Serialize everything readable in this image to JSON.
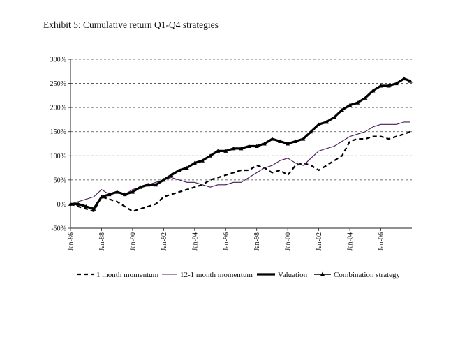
{
  "title": "Exhibit 5: Cumulative return Q1-Q4 strategies",
  "chart_data": {
    "type": "line",
    "title": "Exhibit 5: Cumulative return Q1-Q4 strategies",
    "xlabel": "",
    "ylabel": "",
    "ylim": [
      -50,
      300
    ],
    "xlim": [
      1986.0,
      2008.0
    ],
    "grid": "horizontal dashed",
    "legend_placement": "bottom",
    "y_ticks": [
      "-50%",
      "0%",
      "50%",
      "100%",
      "150%",
      "200%",
      "250%",
      "300%"
    ],
    "y_tick_values": [
      -50,
      0,
      50,
      100,
      150,
      200,
      250,
      300
    ],
    "x_ticks": [
      "Jan-86",
      "Jan-88",
      "Jan-90",
      "Jan-92",
      "Jan-94",
      "Jan-96",
      "Jan-98",
      "Jan-00",
      "Jan-02",
      "Jan-04",
      "Jan-06"
    ],
    "x_tick_values": [
      1986,
      1988,
      1990,
      1992,
      1994,
      1996,
      1998,
      2000,
      2002,
      2004,
      2006
    ],
    "series": [
      {
        "name": "1 month momentum",
        "style": "dashed",
        "color": "#000000",
        "x": [
          1986.0,
          1986.5,
          1987.0,
          1987.5,
          1988.0,
          1988.5,
          1989.0,
          1989.5,
          1990.0,
          1990.5,
          1991.0,
          1991.5,
          1992.0,
          1992.5,
          1993.0,
          1993.5,
          1994.0,
          1994.5,
          1995.0,
          1995.5,
          1996.0,
          1996.5,
          1997.0,
          1997.5,
          1998.0,
          1998.5,
          1999.0,
          1999.5,
          2000.0,
          2000.5,
          2001.0,
          2001.5,
          2002.0,
          2002.5,
          2003.0,
          2003.5,
          2004.0,
          2004.5,
          2005.0,
          2005.5,
          2006.0,
          2006.5,
          2007.0,
          2007.5,
          2007.9
        ],
        "y": [
          0,
          -5,
          -10,
          -15,
          15,
          10,
          5,
          -5,
          -15,
          -10,
          -5,
          0,
          15,
          20,
          25,
          30,
          35,
          40,
          50,
          55,
          60,
          65,
          70,
          70,
          80,
          75,
          65,
          70,
          60,
          80,
          85,
          80,
          70,
          80,
          90,
          100,
          130,
          135,
          135,
          140,
          140,
          135,
          140,
          145,
          150
        ]
      },
      {
        "name": "12-1 month momentum",
        "style": "thin",
        "color": "#4a1a5a",
        "x": [
          1986.0,
          1986.5,
          1987.0,
          1987.5,
          1988.0,
          1988.5,
          1989.0,
          1989.5,
          1990.0,
          1990.5,
          1991.0,
          1991.5,
          1992.0,
          1992.5,
          1993.0,
          1993.5,
          1994.0,
          1994.5,
          1995.0,
          1995.5,
          1996.0,
          1996.5,
          1997.0,
          1997.5,
          1998.0,
          1998.5,
          1999.0,
          1999.5,
          2000.0,
          2000.5,
          2001.0,
          2001.5,
          2002.0,
          2002.5,
          2003.0,
          2003.5,
          2004.0,
          2004.5,
          2005.0,
          2005.5,
          2006.0,
          2006.5,
          2007.0,
          2007.5,
          2007.9
        ],
        "y": [
          0,
          5,
          10,
          15,
          30,
          20,
          25,
          20,
          30,
          35,
          40,
          45,
          50,
          55,
          50,
          45,
          45,
          40,
          35,
          40,
          40,
          45,
          45,
          55,
          65,
          75,
          80,
          90,
          95,
          85,
          80,
          95,
          110,
          115,
          120,
          130,
          140,
          145,
          150,
          160,
          165,
          165,
          165,
          170,
          170
        ]
      },
      {
        "name": "Valuation",
        "style": "thick",
        "color": "#000000",
        "x": [
          1986.0,
          1986.5,
          1987.0,
          1987.5,
          1988.0,
          1988.5,
          1989.0,
          1989.5,
          1990.0,
          1990.5,
          1991.0,
          1991.5,
          1992.0,
          1992.5,
          1993.0,
          1993.5,
          1994.0,
          1994.5,
          1995.0,
          1995.5,
          1996.0,
          1996.5,
          1997.0,
          1997.5,
          1998.0,
          1998.5,
          1999.0,
          1999.5,
          2000.0,
          2000.5,
          2001.0,
          2001.5,
          2002.0,
          2002.5,
          2003.0,
          2003.5,
          2004.0,
          2004.5,
          2005.0,
          2005.5,
          2006.0,
          2006.5,
          2007.0,
          2007.5,
          2007.9
        ],
        "y": [
          0,
          0,
          -5,
          -10,
          15,
          20,
          25,
          20,
          25,
          35,
          40,
          40,
          50,
          60,
          70,
          75,
          85,
          90,
          100,
          110,
          110,
          115,
          115,
          120,
          120,
          125,
          135,
          130,
          125,
          130,
          135,
          150,
          165,
          170,
          180,
          195,
          205,
          210,
          220,
          235,
          245,
          245,
          250,
          260,
          255
        ]
      },
      {
        "name": "Combination strategy",
        "style": "triangle-markers",
        "color": "#000000",
        "x": [
          1986.0,
          1986.5,
          1987.0,
          1987.5,
          1988.0,
          1988.5,
          1989.0,
          1989.5,
          1990.0,
          1990.5,
          1991.0,
          1991.5,
          1992.0,
          1992.5,
          1993.0,
          1993.5,
          1994.0,
          1994.5,
          1995.0,
          1995.5,
          1996.0,
          1996.5,
          1997.0,
          1997.5,
          1998.0,
          1998.5,
          1999.0,
          1999.5,
          2000.0,
          2000.5,
          2001.0,
          2001.5,
          2002.0,
          2002.5,
          2003.0,
          2003.5,
          2004.0,
          2004.5,
          2005.0,
          2005.5,
          2006.0,
          2006.5,
          2007.0,
          2007.5,
          2007.9
        ],
        "y": [
          0,
          0,
          -5,
          -10,
          15,
          20,
          25,
          20,
          25,
          35,
          40,
          40,
          50,
          60,
          70,
          75,
          85,
          90,
          100,
          110,
          110,
          115,
          115,
          120,
          120,
          125,
          135,
          130,
          125,
          130,
          135,
          150,
          165,
          170,
          180,
          195,
          205,
          210,
          220,
          235,
          245,
          245,
          250,
          260,
          255
        ]
      }
    ]
  }
}
